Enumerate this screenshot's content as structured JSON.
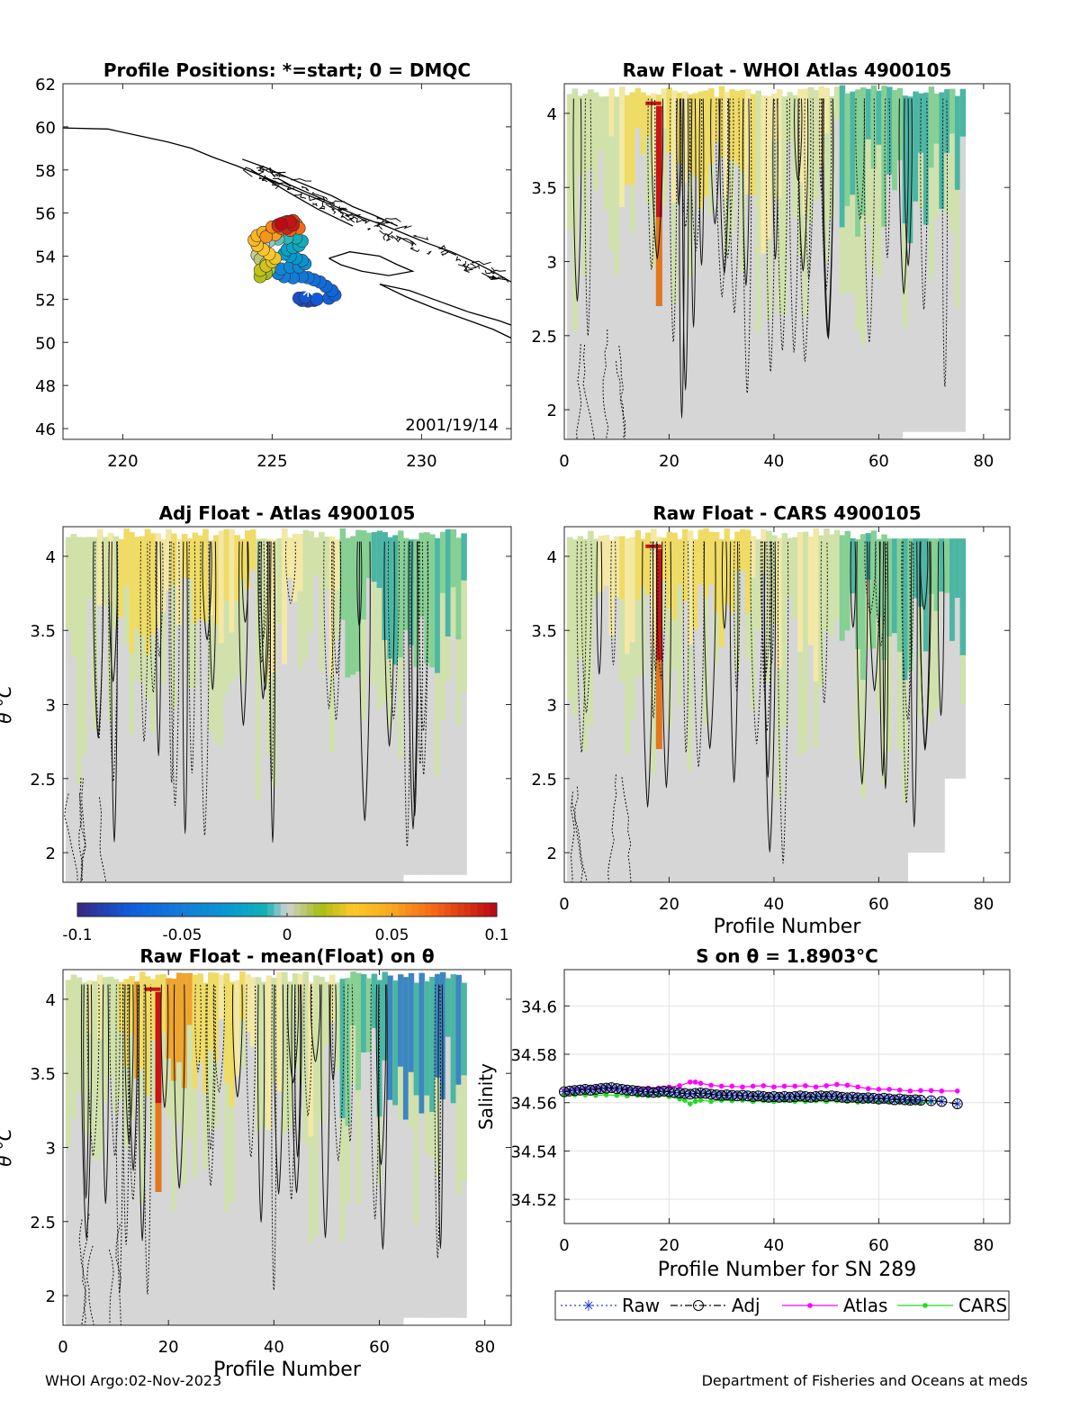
{
  "chart_data": [
    {
      "id": "map",
      "type": "scatter",
      "title": "Profile Positions: *=start; 0 = DMQC",
      "xlim": [
        218,
        233
      ],
      "ylim": [
        45.5,
        62
      ],
      "xticks": [
        220,
        225,
        230
      ],
      "yticks": [
        46,
        48,
        50,
        52,
        54,
        56,
        58,
        60,
        62
      ],
      "annotation": "2001/19/14",
      "coast": [
        [
          [
            218,
            59.95
          ],
          [
            219.5,
            59.9
          ],
          [
            220.5,
            59.6
          ],
          [
            221.5,
            59.3
          ],
          [
            222.3,
            59.0
          ],
          [
            223,
            58.6
          ],
          [
            223.8,
            58.2
          ],
          [
            224.5,
            57.8
          ],
          [
            225.2,
            57.4
          ],
          [
            225.9,
            57.0
          ],
          [
            226.6,
            56.6
          ],
          [
            227.3,
            56.2
          ],
          [
            228,
            55.8
          ],
          [
            228.8,
            55.4
          ],
          [
            229.5,
            55.0
          ],
          [
            230.2,
            54.6
          ],
          [
            231,
            54.2
          ],
          [
            231.8,
            53.7
          ],
          [
            232.5,
            53.2
          ],
          [
            233,
            52.8
          ]
        ],
        [
          [
            224,
            58.5
          ],
          [
            224.8,
            58.1
          ],
          [
            225.6,
            57.6
          ],
          [
            226.3,
            57.2
          ],
          [
            227,
            56.8
          ],
          [
            227.7,
            56.3
          ],
          [
            228.4,
            55.9
          ],
          [
            229.2,
            55.4
          ]
        ],
        [
          [
            224.3,
            58.0
          ],
          [
            224.9,
            57.5
          ],
          [
            225.5,
            57.0
          ],
          [
            226.0,
            56.6
          ],
          [
            226.5,
            56.2
          ],
          [
            227.1,
            55.8
          ],
          [
            227.7,
            55.4
          ]
        ],
        [
          [
            225.2,
            57.6
          ],
          [
            225.6,
            57.3
          ],
          [
            226.1,
            57.0
          ],
          [
            226.6,
            56.7
          ],
          [
            227.1,
            56.4
          ]
        ],
        [
          [
            226.9,
            53.9
          ],
          [
            227.6,
            54.2
          ],
          [
            228.6,
            54.0
          ],
          [
            229.2,
            53.6
          ],
          [
            229.7,
            53.3
          ],
          [
            228.9,
            53.1
          ],
          [
            228.0,
            53.3
          ],
          [
            227.3,
            53.6
          ],
          [
            226.9,
            53.9
          ]
        ],
        [
          [
            228.6,
            52.7
          ],
          [
            229.5,
            52.1
          ],
          [
            230.4,
            51.6
          ],
          [
            231.4,
            51.1
          ],
          [
            232.4,
            50.6
          ],
          [
            233,
            50.2
          ]
        ],
        [
          [
            228.6,
            52.7
          ],
          [
            229.6,
            52.4
          ],
          [
            230.6,
            51.9
          ],
          [
            231.6,
            51.4
          ],
          [
            232.6,
            51.0
          ],
          [
            233,
            50.8
          ]
        ]
      ],
      "track": [
        [
          226.4,
          51.95
        ],
        [
          226.2,
          51.92
        ],
        [
          226.0,
          51.95
        ],
        [
          225.9,
          52.05
        ],
        [
          226.1,
          52.1
        ],
        [
          226.5,
          52.0
        ],
        [
          226.9,
          52.05
        ],
        [
          227.1,
          52.2
        ],
        [
          227.0,
          52.4
        ],
        [
          226.8,
          52.6
        ],
        [
          226.6,
          52.8
        ],
        [
          226.4,
          52.9
        ],
        [
          226.2,
          53.0
        ],
        [
          226.0,
          53.05
        ],
        [
          225.7,
          53.0
        ],
        [
          225.4,
          53.05
        ],
        [
          225.2,
          53.2
        ],
        [
          225.3,
          53.4
        ],
        [
          225.6,
          53.5
        ],
        [
          225.9,
          53.5
        ],
        [
          226.1,
          53.65
        ],
        [
          226.0,
          53.8
        ],
        [
          225.8,
          53.9
        ],
        [
          225.6,
          54.0
        ],
        [
          225.4,
          54.1
        ],
        [
          225.5,
          54.3
        ],
        [
          225.7,
          54.4
        ],
        [
          225.9,
          54.5
        ],
        [
          226.0,
          54.7
        ],
        [
          225.8,
          54.85
        ],
        [
          225.5,
          54.85
        ],
        [
          225.2,
          54.8
        ],
        [
          224.9,
          54.7
        ],
        [
          224.7,
          54.55
        ],
        [
          224.6,
          54.3
        ],
        [
          224.5,
          54.05
        ],
        [
          224.6,
          53.85
        ],
        [
          224.8,
          53.65
        ],
        [
          224.9,
          53.4
        ],
        [
          224.8,
          53.2
        ],
        [
          224.6,
          53.05
        ],
        [
          224.6,
          53.35
        ],
        [
          224.8,
          53.55
        ],
        [
          225.0,
          53.75
        ],
        [
          225.1,
          53.9
        ],
        [
          224.9,
          54.1
        ],
        [
          224.7,
          54.3
        ],
        [
          224.5,
          54.5
        ],
        [
          224.4,
          54.75
        ],
        [
          224.5,
          54.95
        ],
        [
          224.7,
          55.1
        ],
        [
          225.0,
          55.2
        ],
        [
          225.2,
          55.15
        ],
        [
          225.1,
          55.0
        ],
        [
          224.8,
          54.9
        ],
        [
          225.0,
          55.35
        ],
        [
          225.3,
          55.5
        ],
        [
          225.6,
          55.55
        ],
        [
          225.8,
          55.5
        ],
        [
          225.9,
          55.3
        ],
        [
          225.6,
          55.2
        ],
        [
          225.3,
          55.3
        ],
        [
          225.2,
          55.45
        ],
        [
          225.5,
          55.6
        ],
        [
          225.7,
          55.65
        ],
        [
          225.4,
          55.55
        ],
        [
          225.2,
          55.4
        ],
        [
          225.5,
          55.3
        ],
        [
          225.7,
          55.45
        ],
        [
          225.6,
          55.6
        ],
        [
          225.3,
          55.5
        ]
      ],
      "start": [
        226.2,
        52.4
      ]
    },
    {
      "id": "p1",
      "type": "heatmap",
      "title": "Raw Float - WHOI Atlas  4900105",
      "xlim": [
        0,
        85
      ],
      "ylim": [
        1.8,
        4.2
      ],
      "xticks": [
        0,
        20,
        40,
        60,
        80
      ],
      "yticks": [
        2,
        2.5,
        3,
        3.5,
        4
      ],
      "ylabel": "",
      "xlabel": "",
      "seed": 11,
      "style": "atlas"
    },
    {
      "id": "p2",
      "type": "heatmap",
      "title": "Adj Float - Atlas  4900105",
      "xlim": [
        0,
        85
      ],
      "ylim": [
        1.8,
        4.2
      ],
      "xticks": [],
      "yticks": [
        2,
        2.5,
        3,
        3.5,
        4
      ],
      "ylabel": "θ °C",
      "xlabel": "",
      "seed": 23,
      "style": "adj"
    },
    {
      "id": "p3",
      "type": "heatmap",
      "title": "Raw Float - CARS  4900105",
      "xlim": [
        0,
        85
      ],
      "ylim": [
        1.8,
        4.2
      ],
      "xticks": [
        0,
        20,
        40,
        60,
        80
      ],
      "yticks": [
        2,
        2.5,
        3,
        3.5,
        4
      ],
      "ylabel": "",
      "xlabel": "Profile Number",
      "seed": 37,
      "style": "cars"
    },
    {
      "id": "p4",
      "type": "heatmap",
      "title": "Raw Float - mean(Float) on θ",
      "xlim": [
        0,
        85
      ],
      "ylim": [
        1.8,
        4.2
      ],
      "xticks": [
        0,
        20,
        40,
        60,
        80
      ],
      "yticks": [
        2,
        2.5,
        3,
        3.5,
        4
      ],
      "ylabel": "θ °C",
      "xlabel": "Profile Number",
      "seed": 53,
      "style": "mean"
    },
    {
      "id": "colorbar",
      "type": "colorbar",
      "range": [
        -0.1,
        0.1
      ],
      "ticks": [
        -0.1,
        -0.05,
        0,
        0.05,
        0.1
      ],
      "tick_labels": [
        "-0.1",
        "-0.05",
        "0",
        "0.05",
        "0.1"
      ]
    },
    {
      "id": "salinity",
      "type": "line",
      "title": "S on θ = 1.8903°C",
      "xlabel": "Profile Number for SN 289",
      "ylabel": "Salinity",
      "xlim": [
        0,
        85
      ],
      "ylim": [
        34.51,
        34.615
      ],
      "xticks": [
        0,
        20,
        40,
        60,
        80
      ],
      "yticks": [
        34.52,
        34.54,
        34.56,
        34.58,
        34.6
      ],
      "ytick_labels": [
        "34.52",
        "34.54",
        "34.56",
        "34.58",
        "34.6"
      ],
      "series": [
        {
          "name": "Raw",
          "color": "#1f3fd0",
          "style": "dotted",
          "marker": "star",
          "x": [
            0,
            1,
            2,
            3,
            4,
            5,
            6,
            7,
            8,
            9,
            10,
            11,
            12,
            13,
            14,
            15,
            16,
            17,
            18,
            19,
            20,
            21,
            22,
            23,
            24,
            25,
            26,
            27,
            28,
            29,
            30,
            31,
            32,
            33,
            34,
            35,
            36,
            37,
            38,
            39,
            40,
            41,
            42,
            43,
            44,
            45,
            46,
            47,
            48,
            49,
            50,
            51,
            52,
            53,
            54,
            55,
            56,
            57,
            58,
            59,
            60,
            61,
            62,
            63,
            64,
            65,
            66,
            67,
            68,
            70,
            72,
            75
          ],
          "y": [
            34.5645,
            34.5648,
            34.565,
            34.5652,
            34.5655,
            34.5652,
            34.5655,
            34.5658,
            34.566,
            34.5662,
            34.5658,
            34.5655,
            34.5652,
            34.565,
            34.5648,
            34.5645,
            34.5645,
            34.5642,
            34.5645,
            34.5648,
            34.5645,
            34.5642,
            34.564,
            34.5638,
            34.5635,
            34.5638,
            34.564,
            34.5638,
            34.5635,
            34.5632,
            34.563,
            34.5632,
            34.563,
            34.5628,
            34.563,
            34.5628,
            34.5625,
            34.5628,
            34.5625,
            34.5622,
            34.5625,
            34.5622,
            34.5625,
            34.5622,
            34.5625,
            34.5628,
            34.5625,
            34.5622,
            34.5625,
            34.5628,
            34.5625,
            34.5628,
            34.5625,
            34.5622,
            34.562,
            34.5622,
            34.562,
            34.5618,
            34.562,
            34.5618,
            34.5615,
            34.5618,
            34.5615,
            34.5612,
            34.5615,
            34.5612,
            34.561,
            34.5612,
            34.561,
            34.5608,
            34.5605,
            34.5595
          ]
        },
        {
          "name": "Adj",
          "color": "#000000",
          "style": "dashdot",
          "marker": "circle",
          "x": [
            0,
            1,
            2,
            3,
            4,
            5,
            6,
            7,
            8,
            9,
            10,
            11,
            12,
            13,
            14,
            15,
            16,
            17,
            18,
            19,
            20,
            21,
            22,
            23,
            24,
            25,
            26,
            27,
            28,
            29,
            30,
            31,
            32,
            33,
            34,
            35,
            36,
            37,
            38,
            39,
            40,
            41,
            42,
            43,
            44,
            45,
            46,
            47,
            48,
            49,
            50,
            51,
            52,
            53,
            54,
            55,
            56,
            57,
            58,
            59,
            60,
            61,
            62,
            63,
            64,
            65,
            66,
            67,
            68,
            70,
            72,
            75
          ],
          "y": [
            34.5645,
            34.5648,
            34.565,
            34.5652,
            34.5655,
            34.5652,
            34.5655,
            34.5658,
            34.566,
            34.5662,
            34.5658,
            34.5655,
            34.5652,
            34.565,
            34.5648,
            34.5645,
            34.5645,
            34.5642,
            34.5645,
            34.5648,
            34.5645,
            34.5642,
            34.564,
            34.5638,
            34.5635,
            34.5638,
            34.564,
            34.5638,
            34.5635,
            34.5632,
            34.563,
            34.5632,
            34.563,
            34.5628,
            34.563,
            34.5628,
            34.5625,
            34.5628,
            34.5625,
            34.5622,
            34.5625,
            34.5622,
            34.5625,
            34.5622,
            34.5625,
            34.5628,
            34.5625,
            34.5622,
            34.5625,
            34.5628,
            34.5625,
            34.5628,
            34.5625,
            34.5622,
            34.562,
            34.5622,
            34.562,
            34.5618,
            34.562,
            34.5618,
            34.5615,
            34.5618,
            34.5615,
            34.5612,
            34.5615,
            34.5612,
            34.561,
            34.5612,
            34.561,
            34.5608,
            34.5605,
            34.5595
          ]
        },
        {
          "name": "Atlas",
          "color": "#ff00ff",
          "style": "solid",
          "marker": "dot",
          "x": [
            0,
            2,
            4,
            6,
            8,
            10,
            12,
            14,
            16,
            18,
            20,
            22,
            24,
            25,
            26,
            28,
            30,
            32,
            34,
            36,
            38,
            40,
            42,
            44,
            46,
            48,
            50,
            52,
            54,
            56,
            58,
            60,
            62,
            64,
            66,
            68,
            70,
            72,
            75
          ],
          "y": [
            34.565,
            34.5655,
            34.5658,
            34.566,
            34.566,
            34.5658,
            34.5655,
            34.5655,
            34.566,
            34.566,
            34.5665,
            34.567,
            34.5685,
            34.5685,
            34.568,
            34.5672,
            34.5668,
            34.5668,
            34.5665,
            34.5668,
            34.567,
            34.5665,
            34.5668,
            34.5668,
            34.567,
            34.5665,
            34.567,
            34.5675,
            34.5672,
            34.5665,
            34.5658,
            34.5655,
            34.5655,
            34.5652,
            34.5648,
            34.565,
            34.565,
            34.5648,
            34.5648
          ]
        },
        {
          "name": "CARS",
          "color": "#22dd22",
          "style": "solid",
          "marker": "dot",
          "x": [
            0,
            2,
            4,
            6,
            8,
            10,
            12,
            14,
            16,
            18,
            20,
            22,
            23,
            24,
            25,
            26,
            28,
            30,
            32,
            34,
            36,
            38,
            40,
            42,
            44,
            46,
            48,
            50,
            52,
            54,
            56,
            58,
            60,
            62,
            64,
            66,
            68,
            70
          ],
          "y": [
            34.5635,
            34.5632,
            34.5632,
            34.563,
            34.5632,
            34.563,
            34.5628,
            34.563,
            34.5628,
            34.563,
            34.5625,
            34.5615,
            34.561,
            34.5595,
            34.5605,
            34.561,
            34.5605,
            34.561,
            34.5608,
            34.561,
            34.5605,
            34.5608,
            34.5605,
            34.5608,
            34.5605,
            34.5605,
            34.5608,
            34.5605,
            34.5608,
            34.5605,
            34.5602,
            34.5605,
            34.5602,
            34.5605,
            34.5602,
            34.5605,
            34.5602,
            34.5605
          ]
        }
      ],
      "legend_position": "bottom"
    }
  ],
  "footer": {
    "left": "WHOI Argo:02-Nov-2023",
    "right": "Department of Fisheries and Oceans at meds"
  }
}
